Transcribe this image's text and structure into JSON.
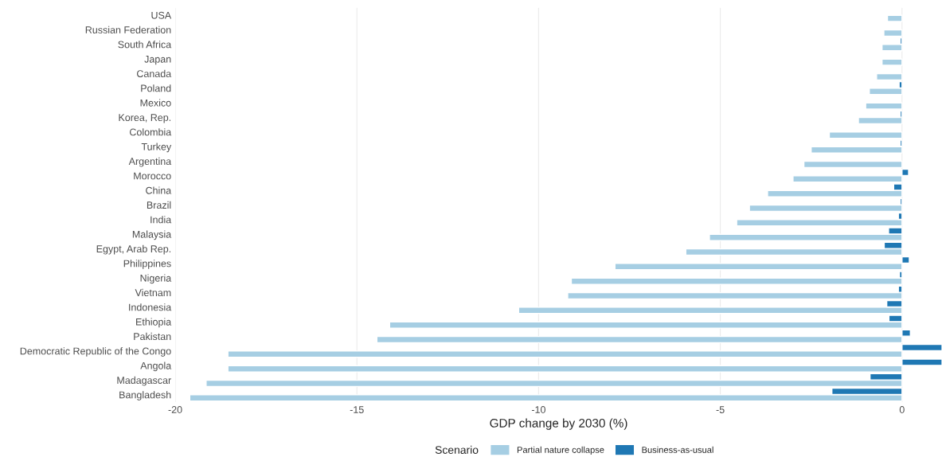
{
  "chart_data": {
    "type": "bar",
    "orientation": "horizontal",
    "categories": [
      "USA",
      "Russian Federation",
      "South Africa",
      "Japan",
      "Canada",
      "Poland",
      "Mexico",
      "Korea, Rep.",
      "Colombia",
      "Turkey",
      "Argentina",
      "Morocco",
      "China",
      "Brazil",
      "India",
      "Malaysia",
      "Egypt, Arab Rep.",
      "Philippines",
      "Nigeria",
      "Vietnam",
      "Indonesia",
      "Ethiopia",
      "Pakistan",
      "Democratic Republic of the Congo",
      "Angola",
      "Madagascar",
      "Bangladesh"
    ],
    "series": [
      {
        "name": "Partial nature collapse",
        "color": "#a6cee3",
        "values": [
          -0.4,
          -0.5,
          -0.55,
          -0.55,
          -0.7,
          -0.9,
          -1.0,
          -1.2,
          -2.0,
          -2.5,
          -2.7,
          -3.0,
          -3.7,
          -4.2,
          -4.55,
          -5.3,
          -5.95,
          -7.9,
          -9.1,
          -9.2,
          -10.55,
          -14.1,
          -14.45,
          -18.55,
          -18.55,
          -19.15,
          -19.6
        ]
      },
      {
        "name": "Business-as-usual",
        "color": "#1f78b4",
        "values": [
          null,
          null,
          -0.05,
          null,
          null,
          -0.08,
          null,
          -0.05,
          null,
          -0.05,
          null,
          0.18,
          -0.23,
          -0.05,
          -0.1,
          -0.37,
          -0.49,
          0.2,
          -0.07,
          -0.1,
          -0.42,
          -0.36,
          0.23,
          1.1,
          1.1,
          -0.88,
          -1.93
        ]
      }
    ],
    "xlabel": "GDP change by 2030 (%)",
    "legend_title": "Scenario",
    "xlim": [
      -20,
      1.1
    ],
    "xticks": [
      -20,
      -15,
      -10,
      -5,
      0
    ],
    "grid": "x",
    "legend": "bottom"
  }
}
